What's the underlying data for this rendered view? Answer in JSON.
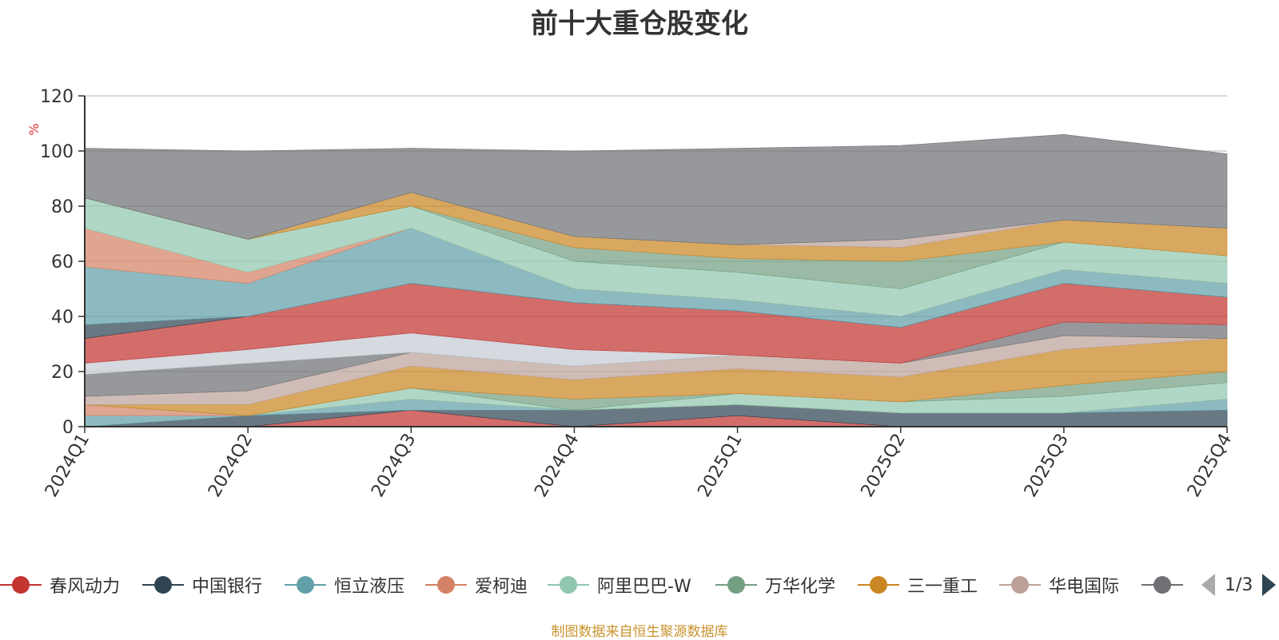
{
  "chart_data": {
    "type": "area",
    "title": "前十大重仓股变化",
    "ylabel": "%",
    "ylim": [
      0,
      120
    ],
    "yticks": [
      0,
      20,
      40,
      60,
      80,
      100,
      120
    ],
    "grid": true,
    "legend_position": "bottom",
    "categories": [
      "2024Q1",
      "2024Q2",
      "2024Q3",
      "2024Q4",
      "2025Q1",
      "2025Q2",
      "2025Q3",
      "2025Q4"
    ],
    "series": [
      {
        "name": "春风动力",
        "color": "#c23531",
        "values": [
          0,
          0,
          6,
          0,
          4,
          0,
          0,
          0
        ]
      },
      {
        "name": "中国银行",
        "color": "#2f4554",
        "values": [
          0,
          4,
          0,
          6,
          4,
          5,
          5,
          6
        ]
      },
      {
        "name": "恒立液压",
        "color": "#61a0a8",
        "values": [
          4,
          0,
          4,
          0,
          0,
          0,
          0,
          4
        ]
      },
      {
        "name": "爱柯迪",
        "color": "#d48265",
        "values": [
          4,
          0,
          0,
          0,
          0,
          0,
          0,
          0
        ]
      },
      {
        "name": "阿里巴巴-W",
        "color": "#91c7ae",
        "values": [
          0,
          0,
          4,
          0,
          4,
          4,
          6,
          6
        ]
      },
      {
        "name": "万华化学",
        "color": "#749f83",
        "values": [
          0,
          0,
          0,
          4,
          0,
          0,
          4,
          4
        ]
      },
      {
        "name": "三一重工",
        "color": "#ca8622",
        "values": [
          0,
          4,
          8,
          7,
          9,
          9,
          13,
          12
        ]
      },
      {
        "name": "华电国际",
        "color": "#bda29a",
        "values": [
          3,
          5,
          5,
          5,
          5,
          5,
          5,
          0
        ]
      },
      {
        "name": "",
        "color": "#6e7074",
        "values": [
          8,
          10,
          0,
          0,
          0,
          0,
          5,
          5
        ]
      },
      {
        "name": "",
        "color": "#c4ccd3",
        "values": [
          4,
          5,
          7,
          6,
          0,
          0,
          0,
          0
        ]
      },
      {
        "name": "",
        "color": "#c23531",
        "values": [
          9,
          12,
          18,
          17,
          16,
          13,
          14,
          10
        ]
      },
      {
        "name": "",
        "color": "#2f4554",
        "values": [
          5,
          0,
          0,
          0,
          0,
          0,
          0,
          0
        ]
      },
      {
        "name": "",
        "color": "#61a0a8",
        "values": [
          21,
          12,
          20,
          5,
          4,
          4,
          5,
          5
        ]
      },
      {
        "name": "",
        "color": "#d48265",
        "values": [
          14,
          4,
          0,
          0,
          0,
          0,
          0,
          0
        ]
      },
      {
        "name": "",
        "color": "#91c7ae",
        "values": [
          11,
          12,
          8,
          10,
          10,
          10,
          10,
          10
        ]
      },
      {
        "name": "",
        "color": "#749f83",
        "values": [
          0,
          0,
          0,
          5,
          5,
          10,
          0,
          0
        ]
      },
      {
        "name": "",
        "color": "#ca8622",
        "values": [
          0,
          0,
          5,
          4,
          5,
          5,
          8,
          10
        ]
      },
      {
        "name": "",
        "color": "#bda29a",
        "values": [
          0,
          0,
          0,
          0,
          0,
          3,
          0,
          0
        ]
      },
      {
        "name": "",
        "color": "#6e7074",
        "values": [
          18,
          32,
          16,
          31,
          35,
          34,
          31,
          27
        ]
      }
    ]
  },
  "legend": {
    "visible_items": [
      "春风动力",
      "中国银行",
      "恒立液压",
      "爱柯迪",
      "阿里巴巴-W",
      "万华化学",
      "三一重工",
      "华电国际",
      ""
    ],
    "colors": [
      "#c23531",
      "#2f4554",
      "#61a0a8",
      "#d48265",
      "#91c7ae",
      "#749f83",
      "#ca8622",
      "#bda29a",
      "#6e7074"
    ],
    "page_indicator": "1/3",
    "prev_icon": "triangle-left-icon",
    "next_icon": "triangle-right-icon"
  },
  "source_note": "制图数据来自恒生聚源数据库"
}
